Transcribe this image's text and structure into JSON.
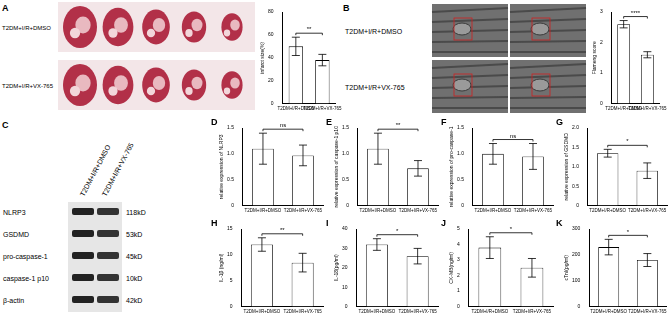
{
  "figure": {
    "photos": {
      "letter": "A",
      "rows": [
        "T2DM+I/R+DMSO",
        "T2DM+I/R+VX-765"
      ]
    },
    "micrographs": {
      "letter": "B",
      "rows": [
        "T2DM+I/R+DMSO",
        "T2DM+I/R+VX-765"
      ]
    },
    "blot": {
      "letter": "C",
      "columns": [
        "T2DM+I/R+DMSO",
        "T2DM+I/R+VX-765"
      ],
      "bands": [
        {
          "protein": "NLRP3",
          "size": "118kD"
        },
        {
          "protein": "GSDMD",
          "size": "53kD"
        },
        {
          "protein": "pro-caspase-1",
          "size": "45kD"
        },
        {
          "protein": "caspase-1 p10",
          "size": "10kD"
        },
        {
          "protein": "β-actin",
          "size": "42kD"
        }
      ]
    }
  },
  "chart_data": [
    {
      "type": "bar",
      "y_label": "infarct size(%)",
      "categories": [
        "T2DM+I/R+DMSO",
        "T2DM+I/R+VX-765"
      ],
      "values": [
        50,
        38
      ],
      "errors": [
        8,
        5
      ],
      "significance": "**",
      "color": "#ffffff",
      "ylim": [
        0,
        80
      ],
      "yticks": [
        0,
        20,
        40,
        60,
        80
      ],
      "grid": false
    },
    {
      "type": "bar",
      "y_label": "Flameng score",
      "categories": [
        "T2DM+I/R+DMSO",
        "T2DM+I/R+VX-765"
      ],
      "values": [
        2.6,
        1.6
      ],
      "errors": [
        0.12,
        0.1
      ],
      "significance": "****",
      "color": "#ffffff",
      "ylim": [
        0,
        3
      ],
      "yticks": [
        0,
        1,
        2,
        3
      ],
      "grid": false
    },
    {
      "type": "bar",
      "panel": "D",
      "y_label": "relative expression of NLRP3",
      "categories": [
        "T2DM+I/R+DMSO",
        "T2DM+I/R+VX-765"
      ],
      "values": [
        1.1,
        0.97
      ],
      "errors": [
        0.3,
        0.2
      ],
      "significance": "ns",
      "color": "#ffffff",
      "ylim": [
        0,
        1.5
      ],
      "yticks": [
        0,
        0.5,
        {
          "value": 1,
          "label": "1.0"
        },
        1.5
      ],
      "grid": false
    },
    {
      "type": "bar",
      "panel": "E",
      "y_label": "relative expression of caspase-1 p10",
      "categories": [
        "T2DM+I/R+DMSO",
        "T2DM+I/R+VX-765"
      ],
      "values": [
        1.1,
        0.72
      ],
      "errors": [
        0.3,
        0.15
      ],
      "significance": "**",
      "color": "#ffffff",
      "ylim": [
        0,
        1.5
      ],
      "yticks": [
        0,
        0.5,
        {
          "value": 1,
          "label": "1.0"
        },
        1.5
      ],
      "grid": false
    },
    {
      "type": "bar",
      "panel": "F",
      "y_label": "relative expression of pro-caspase-1",
      "categories": [
        "T2DM+I/R+DMSO",
        "T2DM+I/R+VX-765"
      ],
      "values": [
        1.0,
        0.95
      ],
      "errors": [
        0.2,
        0.25
      ],
      "significance": "ns",
      "color": "#ffffff",
      "ylim": [
        0,
        1.5
      ],
      "yticks": [
        0,
        0.5,
        {
          "value": 1,
          "label": "1.0"
        },
        1.5
      ],
      "grid": false
    },
    {
      "type": "bar",
      "panel": "G",
      "y_label": "relative expression of GSDMD",
      "categories": [
        "T2DM+I/R+DMSO",
        "T2DM+I/R+VX-765"
      ],
      "values": [
        1.35,
        0.9
      ],
      "errors": [
        0.1,
        0.2
      ],
      "significance": "*",
      "color": "#ffffff",
      "ylim": [
        0,
        2
      ],
      "yticks": [
        0,
        0.5,
        {
          "value": 1,
          "label": "1.0"
        },
        1.5,
        {
          "value": 2,
          "label": "2.0"
        }
      ],
      "grid": false
    },
    {
      "type": "bar",
      "panel": "H",
      "y_label": "IL-1β (ng/ml)",
      "categories": [
        "T2DM+I/R+DMSO",
        "T2DM+I/R+VX-765"
      ],
      "values": [
        12,
        8.5
      ],
      "errors": [
        1.3,
        1.8
      ],
      "significance": "**",
      "color": "#ffffff",
      "ylim": [
        0,
        15
      ],
      "yticks": [
        0,
        5,
        10,
        15
      ],
      "grid": false
    },
    {
      "type": "bar",
      "panel": "I",
      "y_label": "IL-18(pg/ml)",
      "categories": [
        "T2DM+I/R+DMSO",
        "T2DM+I/R+VX-765"
      ],
      "values": [
        32,
        26
      ],
      "errors": [
        3,
        4
      ],
      "significance": "*",
      "color": "#ffffff",
      "ylim": [
        0,
        40
      ],
      "yticks": [
        0,
        10,
        20,
        30,
        40
      ],
      "grid": false
    },
    {
      "type": "bar",
      "panel": "J",
      "y_label": "CK-MB(ng/ml)",
      "categories": [
        "T2DM+I/R+DMSO",
        "T2DM+I/R+VX-765"
      ],
      "values": [
        3.8,
        2.5
      ],
      "errors": [
        0.7,
        0.6
      ],
      "significance": "*",
      "color": "#ffffff",
      "ylim": [
        0,
        5
      ],
      "yticks": [
        0,
        1,
        2,
        3,
        4,
        5
      ],
      "grid": false
    },
    {
      "type": "bar",
      "panel": "K",
      "y_label": "cTnI(pg/ml)",
      "categories": [
        "T2DM+I/R+DMSO",
        "T2DM+I/R+VX-765"
      ],
      "values": [
        230,
        180
      ],
      "errors": [
        30,
        25
      ],
      "significance": "*",
      "color": "#ffffff",
      "ylim": [
        0,
        300
      ],
      "yticks": [
        0,
        100,
        200,
        300
      ],
      "grid": false
    }
  ]
}
